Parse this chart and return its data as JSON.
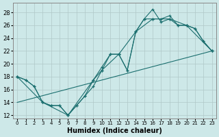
{
  "xlabel": "Humidex (Indice chaleur)",
  "xlim": [
    -0.5,
    23.5
  ],
  "ylim": [
    11.5,
    29.5
  ],
  "yticks": [
    12,
    14,
    16,
    18,
    20,
    22,
    24,
    26,
    28
  ],
  "xticks": [
    0,
    1,
    2,
    3,
    4,
    5,
    6,
    7,
    8,
    9,
    10,
    11,
    12,
    13,
    14,
    15,
    16,
    17,
    18,
    19,
    20,
    21,
    22,
    23
  ],
  "bg_color": "#cde8e8",
  "grid_color": "#b0c8c8",
  "line_color": "#1a6e6e",
  "line1_x": [
    0,
    1,
    2,
    3,
    4,
    5,
    6,
    7,
    8,
    9,
    10,
    11,
    12,
    13,
    14,
    15,
    16,
    17,
    18,
    19,
    20,
    21,
    22,
    23
  ],
  "line1_y": [
    18.0,
    17.5,
    16.5,
    14.0,
    13.5,
    13.5,
    12.0,
    13.5,
    15.0,
    17.5,
    19.5,
    21.5,
    21.5,
    19.0,
    25.0,
    27.0,
    28.5,
    26.5,
    27.0,
    26.0,
    26.0,
    25.5,
    23.5,
    22.0
  ],
  "line2_x": [
    0,
    1,
    2,
    3,
    4,
    5,
    6,
    7,
    8,
    9,
    10,
    11,
    12,
    13,
    14,
    15,
    16,
    17,
    18,
    19,
    20,
    21,
    22,
    23
  ],
  "line2_y": [
    18.0,
    17.5,
    16.5,
    14.0,
    13.5,
    13.5,
    12.0,
    13.5,
    15.0,
    16.5,
    19.0,
    21.5,
    21.5,
    19.0,
    25.0,
    27.0,
    27.0,
    27.0,
    27.5,
    26.0,
    26.0,
    25.5,
    23.5,
    22.0
  ],
  "line3_x": [
    0,
    3,
    6,
    9,
    10,
    12,
    14,
    16,
    18,
    20,
    23
  ],
  "line3_y": [
    18.0,
    14.0,
    12.0,
    17.5,
    19.0,
    21.5,
    25.0,
    27.0,
    27.0,
    26.0,
    22.0
  ],
  "line4_x": [
    0,
    23
  ],
  "line4_y": [
    14.0,
    22.0
  ]
}
